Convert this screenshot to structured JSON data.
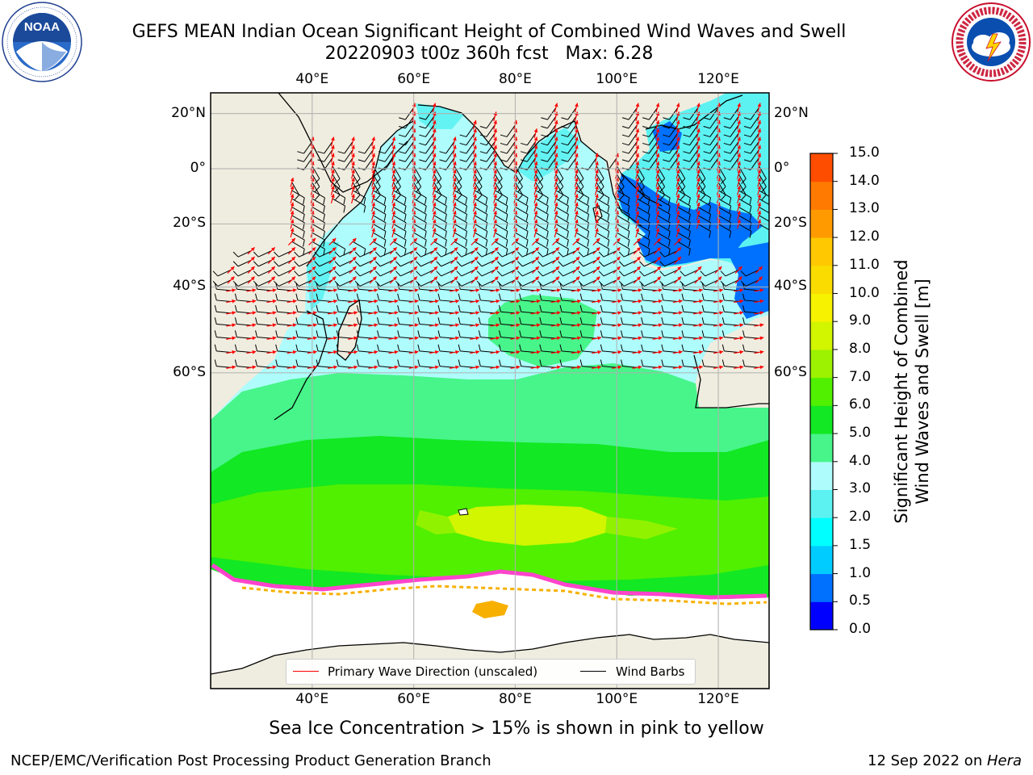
{
  "title": {
    "line1": "GEFS MEAN Indian Ocean Significant Height of Combined Wind Waves and Swell",
    "line2": "20220903 t00z 360h fcst   Max: 6.28"
  },
  "logos": {
    "noaa": {
      "center_text": "NOAA",
      "ring_text": "NATIONAL OCEANIC AND ATMOSPHERIC ADMINISTRATION · U.S. DEPARTMENT OF COMMERCE"
    },
    "nws": {
      "ring_text": "NATIONAL WEATHER SERVICE"
    }
  },
  "map": {
    "lon_range": [
      20,
      130
    ],
    "lat_range": [
      -86,
      27
    ],
    "top_lon_labels": [
      "40°E",
      "60°E",
      "80°E",
      "100°E",
      "120°E"
    ],
    "bottom_lon_labels": [
      "40°E",
      "60°E",
      "80°E",
      "100°E",
      "120°E"
    ],
    "left_lat_labels": [
      "20°N",
      "0°",
      "20°S",
      "40°S",
      "60°S"
    ],
    "right_lat_labels": [
      "20°N",
      "0°",
      "20°S",
      "40°S",
      "60°S"
    ],
    "land_color": "#efeddf",
    "ocean_base_color": "#aefcfc"
  },
  "colorbar": {
    "ticks": [
      "15.0",
      "14.0",
      "13.0",
      "12.0",
      "11.0",
      "10.0",
      "9.0",
      "8.0",
      "7.0",
      "6.0",
      "5.0",
      "4.0",
      "3.0",
      "2.0",
      "1.5",
      "1.0",
      "0.5",
      "0.0"
    ],
    "colors_bottom_to_top": [
      "#0000ff",
      "#0070ff",
      "#00ccff",
      "#00ffff",
      "#5cf2f2",
      "#aefcfc",
      "#47f58a",
      "#12e823",
      "#50f000",
      "#9cf200",
      "#d2f500",
      "#f7f200",
      "#fbdc00",
      "#ffc800",
      "#ff9a00",
      "#ff7a00",
      "#ff4d00",
      "#ff1a00",
      "#ff0000"
    ],
    "label_line1": "Significant Height of Combined",
    "label_line2": "Wind Waves and Swell [m]"
  },
  "legend": {
    "wave_label": "Primary Wave Direction (unscaled)",
    "wave_color": "#ff0000",
    "barb_label": "Wind Barbs",
    "barb_color": "#000000"
  },
  "caption": "Sea Ice Concentration > 15% is shown in pink to yellow",
  "footer": {
    "left": "NCEP/EMC/Verification Post Processing Product Generation Branch",
    "date": "12 Sep 2022 on ",
    "machine": "Hera"
  }
}
